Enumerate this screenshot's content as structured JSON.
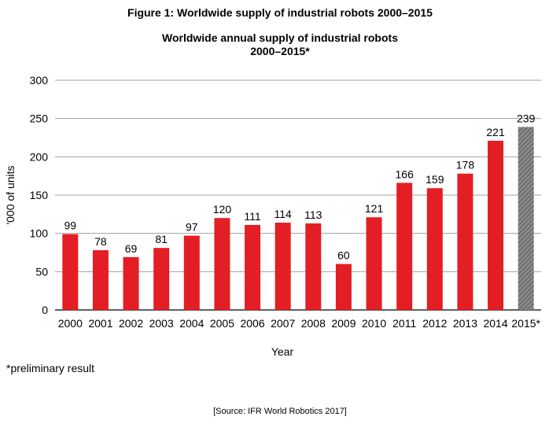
{
  "figure_title": "Figure 1: Worldwide supply of industrial robots 2000–2015",
  "chart_title_line1": "Worldwide annual supply of industrial robots",
  "chart_title_line2": "2000–2015*",
  "footnote": "*preliminary result",
  "source": "[Source: IFR World Robotics 2017]",
  "colors": {
    "bar": "#e31e24",
    "preliminary": "#7f7f7f",
    "grid": "#a0a0a0"
  },
  "chart_data": {
    "type": "bar",
    "title": "Worldwide annual supply of industrial robots 2000–2015*",
    "xlabel": "Year",
    "ylabel": "'000 of units",
    "ylim": [
      0,
      300
    ],
    "yticks": [
      0,
      50,
      100,
      150,
      200,
      250,
      300
    ],
    "grid": true,
    "categories": [
      "2000",
      "2001",
      "2002",
      "2003",
      "2004",
      "2005",
      "2006",
      "2007",
      "2008",
      "2009",
      "2010",
      "2011",
      "2012",
      "2013",
      "2014",
      "2015*"
    ],
    "values": [
      99,
      78,
      69,
      81,
      97,
      120,
      111,
      114,
      113,
      60,
      121,
      166,
      159,
      178,
      221,
      239
    ],
    "preliminary_index": 15
  }
}
